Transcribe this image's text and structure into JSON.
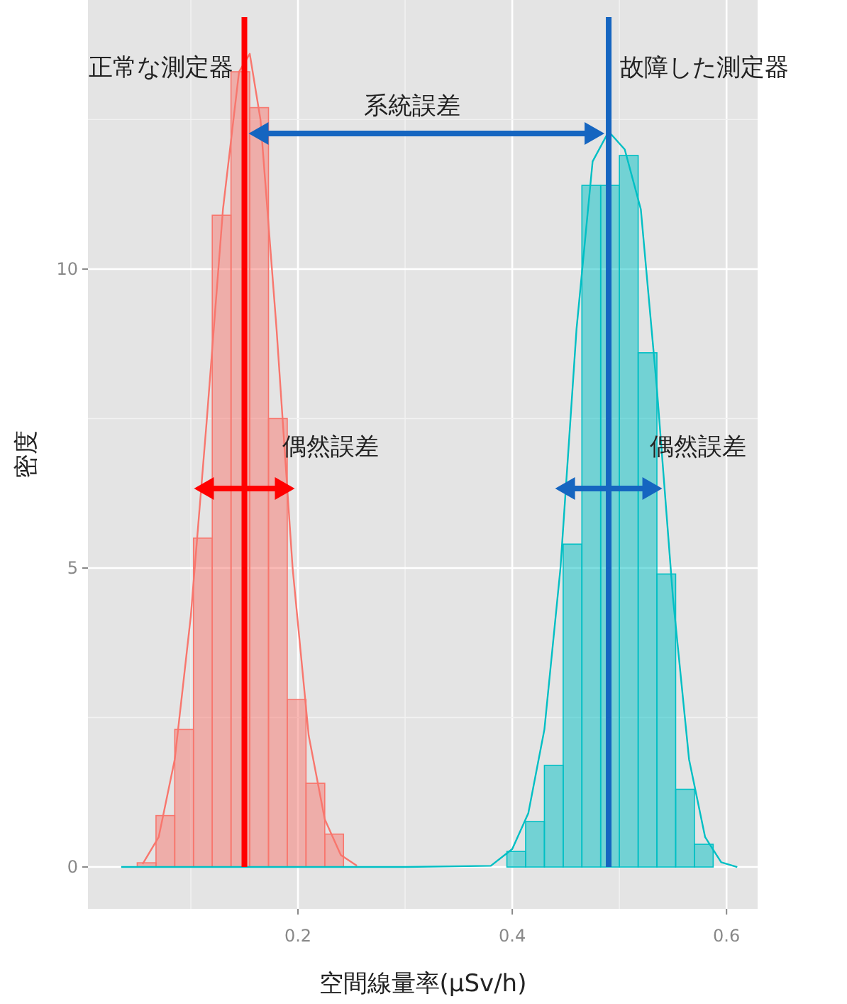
{
  "chart_data": {
    "type": "histogram",
    "xlabel": "空間線量率(µSv/h)",
    "ylabel": "密度",
    "xlim": [
      0.004,
      0.629
    ],
    "ylim": [
      -0.7,
      14.5
    ],
    "xticks": [
      0.2,
      0.4,
      0.6
    ],
    "yticks": [
      0,
      5,
      10
    ],
    "grid": true,
    "series": [
      {
        "color": "#f8766d",
        "bins": [
          0.05,
          0.0675,
          0.085,
          0.1025,
          0.12,
          0.1375,
          0.155,
          0.1725,
          0.19,
          0.2075,
          0.225,
          0.2425
        ],
        "values": [
          0.07,
          0.86,
          2.3,
          5.5,
          10.9,
          13.3,
          12.7,
          7.5,
          2.8,
          1.4,
          0.55
        ]
      },
      {
        "color": "#00bfc4",
        "bins": [
          0.395,
          0.4125,
          0.43,
          0.4475,
          0.465,
          0.4825,
          0.5,
          0.5175,
          0.535,
          0.5525,
          0.57,
          0.5875
        ],
        "values": [
          0.26,
          0.76,
          1.7,
          5.4,
          11.4,
          11.4,
          11.9,
          8.6,
          4.9,
          1.3,
          0.38
        ]
      },
      {
        "type": "line",
        "color": "#f8766d",
        "x": [
          0.055,
          0.07,
          0.085,
          0.1,
          0.115,
          0.13,
          0.145,
          0.155,
          0.165,
          0.18,
          0.195,
          0.21,
          0.225,
          0.24,
          0.255
        ],
        "values": [
          0.05,
          0.5,
          1.8,
          4.2,
          7.5,
          11,
          13.3,
          13.6,
          12.5,
          9,
          5,
          2.2,
          0.8,
          0.2,
          0.02
        ]
      },
      {
        "type": "line",
        "color": "#00bfc4",
        "x": [
          0.035,
          0.1,
          0.2,
          0.3,
          0.38,
          0.4,
          0.415,
          0.43,
          0.445,
          0.46,
          0.475,
          0.49,
          0.505,
          0.52,
          0.535,
          0.55,
          0.565,
          0.58,
          0.595,
          0.61
        ],
        "values": [
          0,
          0,
          0,
          0,
          0.02,
          0.3,
          0.9,
          2.3,
          5,
          9,
          11.8,
          12.3,
          12,
          11,
          8,
          4.5,
          1.8,
          0.5,
          0.08,
          0
        ]
      }
    ],
    "ref_lines": [
      {
        "axis": "x",
        "value": 0.15,
        "label": "正常な測定器",
        "color": "#ff0000"
      },
      {
        "axis": "x",
        "value": 0.49,
        "label": "故障した測定器",
        "color": "#1565c0"
      }
    ],
    "annotations": [
      "系統誤差",
      {
        "text": "偶然誤差",
        "x": 0.197,
        "y": 6.33
      },
      {
        "text": "偶然誤差",
        "x": 0.54,
        "y": 6.33
      }
    ]
  }
}
